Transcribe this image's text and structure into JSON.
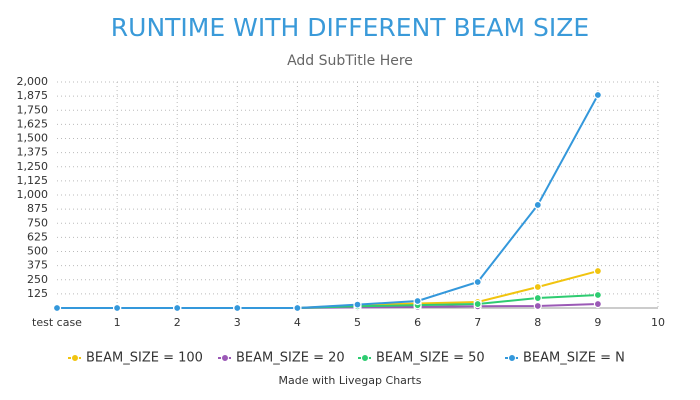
{
  "chart_data": {
    "type": "line",
    "title": "RUNTIME WITH DIFFERENT BEAM SIZE",
    "subtitle": "Add SubTitle Here",
    "credit": "Made with Livegap Charts",
    "categories": [
      "test case",
      "1",
      "2",
      "3",
      "4",
      "5",
      "6",
      "7",
      "8",
      "9",
      "10"
    ],
    "series": [
      {
        "name": "BEAM_SIZE = 100",
        "color": "#f1c40f",
        "values": [
          0,
          0,
          0,
          0,
          0,
          25,
          40,
          53,
          186,
          327,
          null
        ]
      },
      {
        "name": "BEAM_SIZE = 20",
        "color": "#9b59b6",
        "values": [
          0,
          0,
          0,
          0,
          0,
          5,
          10,
          15,
          18,
          35,
          null
        ]
      },
      {
        "name": "BEAM_SIZE = 50",
        "color": "#2ecc71",
        "values": [
          0,
          0,
          0,
          0,
          0,
          15,
          25,
          35,
          88,
          115,
          null
        ]
      },
      {
        "name": "BEAM_SIZE = N",
        "color": "#3498db",
        "values": [
          0,
          0,
          0,
          0,
          0,
          30,
          62,
          230,
          912,
          1885,
          null
        ]
      }
    ],
    "ylim": [
      0,
      2000
    ],
    "yticks": [
      125,
      250,
      375,
      500,
      625,
      750,
      875,
      {
        "value": 1000,
        "label": "1,000"
      },
      {
        "value": 1125,
        "label": "1,125"
      },
      {
        "value": 1250,
        "label": "1,250"
      },
      {
        "value": 1375,
        "label": "1,375"
      },
      {
        "value": 1500,
        "label": "1,500"
      },
      {
        "value": 1625,
        "label": "1,625"
      },
      {
        "value": 1750,
        "label": "1,750"
      },
      {
        "value": 1875,
        "label": "1,875"
      },
      {
        "value": 2000,
        "label": "2,000"
      }
    ],
    "grid": true,
    "legend": "bottom"
  }
}
